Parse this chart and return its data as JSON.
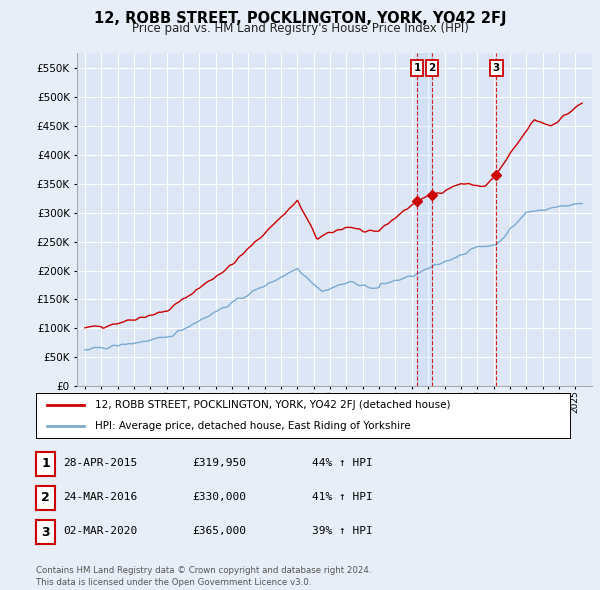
{
  "title": "12, ROBB STREET, POCKLINGTON, YORK, YO42 2FJ",
  "subtitle": "Price paid vs. HM Land Registry's House Price Index (HPI)",
  "background_color": "#e8eef8",
  "plot_bg_color": "#dde6f5",
  "grid_color": "#c8d4e8",
  "red_line_color": "#cc0000",
  "blue_line_color": "#7aaad0",
  "transactions": [
    {
      "label": "1",
      "date_x": 2015.32,
      "price": 319950,
      "text": "28-APR-2015",
      "price_text": "£319,950",
      "hpi_text": "44% ↑ HPI"
    },
    {
      "label": "2",
      "date_x": 2016.23,
      "price": 330000,
      "text": "24-MAR-2016",
      "price_text": "£330,000",
      "hpi_text": "41% ↑ HPI"
    },
    {
      "label": "3",
      "date_x": 2020.17,
      "price": 365000,
      "text": "02-MAR-2020",
      "price_text": "£365,000",
      "hpi_text": "39% ↑ HPI"
    }
  ],
  "legend_entries": [
    "12, ROBB STREET, POCKLINGTON, YORK, YO42 2FJ (detached house)",
    "HPI: Average price, detached house, East Riding of Yorkshire"
  ],
  "footer_text": "Contains HM Land Registry data © Crown copyright and database right 2024.\nThis data is licensed under the Open Government Licence v3.0.",
  "ylim": [
    0,
    575000
  ],
  "yticks": [
    0,
    50000,
    100000,
    150000,
    200000,
    250000,
    300000,
    350000,
    400000,
    450000,
    500000,
    550000
  ],
  "xlim": [
    1994.5,
    2026.0
  ]
}
